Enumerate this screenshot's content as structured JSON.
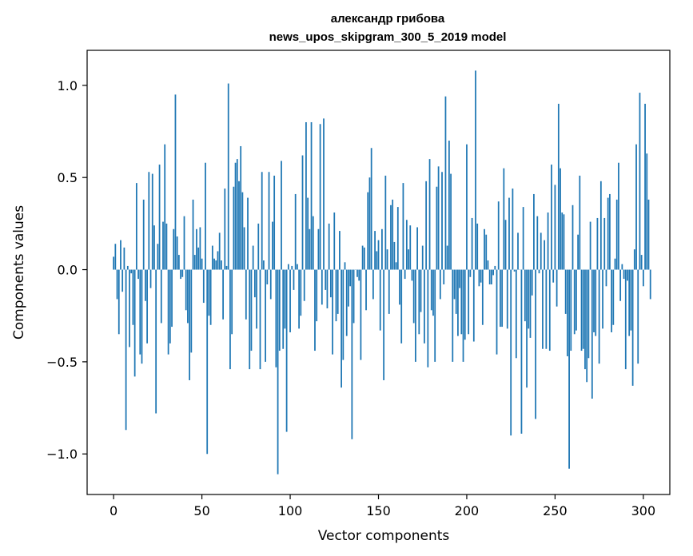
{
  "chart_data": {
    "type": "bar",
    "title": "александр грибова",
    "subtitle": "news_upos_skipgram_300_5_2019 model",
    "xlabel": "Vector components",
    "ylabel": "Components values",
    "xlim": [
      -15,
      315
    ],
    "ylim": [
      -1.22,
      1.19
    ],
    "xticks": [
      0,
      50,
      100,
      150,
      200,
      250,
      300
    ],
    "yticks": [
      -1.0,
      -0.5,
      0.0,
      0.5,
      1.0
    ],
    "xtick_labels": [
      "0",
      "50",
      "100",
      "150",
      "200",
      "250",
      "300"
    ],
    "ytick_labels": [
      "−1.0",
      "−0.5",
      "0.0",
      "0.5",
      "1.0"
    ],
    "bar_color": "#1f77b4",
    "grid": false,
    "values": [
      0.07,
      0.14,
      -0.16,
      -0.35,
      0.16,
      -0.12,
      0.12,
      -0.87,
      0.02,
      -0.42,
      -0.02,
      -0.3,
      -0.58,
      0.47,
      -0.05,
      -0.46,
      -0.51,
      0.38,
      -0.17,
      -0.4,
      0.53,
      -0.1,
      0.52,
      0.24,
      -0.78,
      0.14,
      0.57,
      -0.29,
      0.26,
      0.68,
      0.25,
      -0.46,
      -0.4,
      -0.31,
      0.22,
      0.95,
      0.18,
      0.08,
      -0.05,
      -0.04,
      0.29,
      -0.22,
      -0.29,
      -0.6,
      -0.45,
      0.38,
      0.08,
      0.22,
      0.12,
      0.23,
      0.06,
      -0.18,
      0.58,
      -1.0,
      -0.25,
      -0.3,
      0.13,
      0.06,
      0.05,
      0.1,
      0.2,
      0.05,
      -0.27,
      0.44,
      0.02,
      1.01,
      -0.54,
      -0.35,
      0.45,
      0.58,
      0.6,
      0.48,
      0.67,
      0.42,
      0.23,
      -0.27,
      0.39,
      -0.54,
      -0.44,
      0.13,
      -0.15,
      -0.32,
      0.25,
      -0.54,
      0.53,
      0.05,
      -0.5,
      -0.08,
      0.53,
      -0.16,
      0.26,
      0.51,
      -0.53,
      -1.11,
      -0.44,
      0.59,
      -0.43,
      -0.32,
      -0.88,
      0.03,
      -0.34,
      0.02,
      -0.11,
      0.41,
      0.03,
      -0.32,
      -0.25,
      0.62,
      -0.17,
      0.8,
      0.39,
      0.22,
      0.8,
      0.29,
      -0.44,
      -0.28,
      0.22,
      0.79,
      -0.19,
      0.82,
      -0.11,
      -0.21,
      0.25,
      -0.15,
      -0.46,
      0.31,
      -0.28,
      -0.24,
      0.21,
      -0.64,
      -0.49,
      0.04,
      -0.36,
      -0.2,
      -0.09,
      -0.92,
      -0.29,
      0.0,
      -0.04,
      -0.06,
      -0.49,
      0.13,
      0.12,
      -0.22,
      0.42,
      0.5,
      0.66,
      -0.16,
      0.21,
      0.1,
      0.16,
      -0.33,
      0.22,
      -0.6,
      0.51,
      0.11,
      -0.24,
      0.35,
      0.38,
      0.15,
      0.04,
      0.34,
      -0.19,
      -0.4,
      0.47,
      -0.05,
      0.27,
      0.11,
      0.24,
      -0.06,
      -0.29,
      -0.5,
      0.23,
      -0.35,
      -0.23,
      0.13,
      -0.4,
      0.48,
      -0.53,
      0.6,
      -0.22,
      -0.25,
      -0.5,
      0.45,
      0.56,
      -0.16,
      0.53,
      -0.08,
      0.94,
      0.13,
      0.7,
      0.52,
      -0.5,
      -0.16,
      -0.24,
      -0.36,
      -0.1,
      -0.35,
      -0.5,
      -0.38,
      0.68,
      -0.35,
      -0.04,
      0.28,
      -0.39,
      1.08,
      0.25,
      -0.09,
      -0.07,
      -0.3,
      0.22,
      0.19,
      0.05,
      -0.08,
      -0.08,
      -0.03,
      0.02,
      -0.46,
      0.37,
      -0.31,
      -0.31,
      0.55,
      0.27,
      -0.32,
      0.39,
      -0.9,
      0.44,
      -0.01,
      -0.48,
      0.2,
      0.0,
      -0.89,
      0.34,
      -0.28,
      -0.64,
      -0.32,
      -0.37,
      -0.14,
      0.41,
      -0.81,
      0.29,
      -0.02,
      0.2,
      -0.43,
      0.16,
      -0.43,
      0.31,
      -0.44,
      0.57,
      -0.07,
      0.46,
      -0.2,
      0.9,
      0.55,
      0.31,
      0.3,
      -0.24,
      -0.47,
      -1.08,
      -0.44,
      0.35,
      -0.35,
      -0.33,
      0.19,
      0.51,
      -0.44,
      -0.43,
      -0.54,
      -0.61,
      -0.48,
      0.26,
      -0.7,
      -0.34,
      -0.36,
      0.28,
      -0.51,
      0.48,
      -0.32,
      0.28,
      -0.09,
      0.39,
      0.41,
      -0.34,
      -0.3,
      0.06,
      0.38,
      0.58,
      -0.17,
      0.03,
      -0.05,
      -0.54,
      -0.06,
      -0.36,
      -0.33,
      -0.63,
      0.11,
      0.68,
      -0.51,
      0.96,
      0.08,
      -0.09,
      0.9,
      0.63,
      0.38,
      -0.16
    ]
  }
}
